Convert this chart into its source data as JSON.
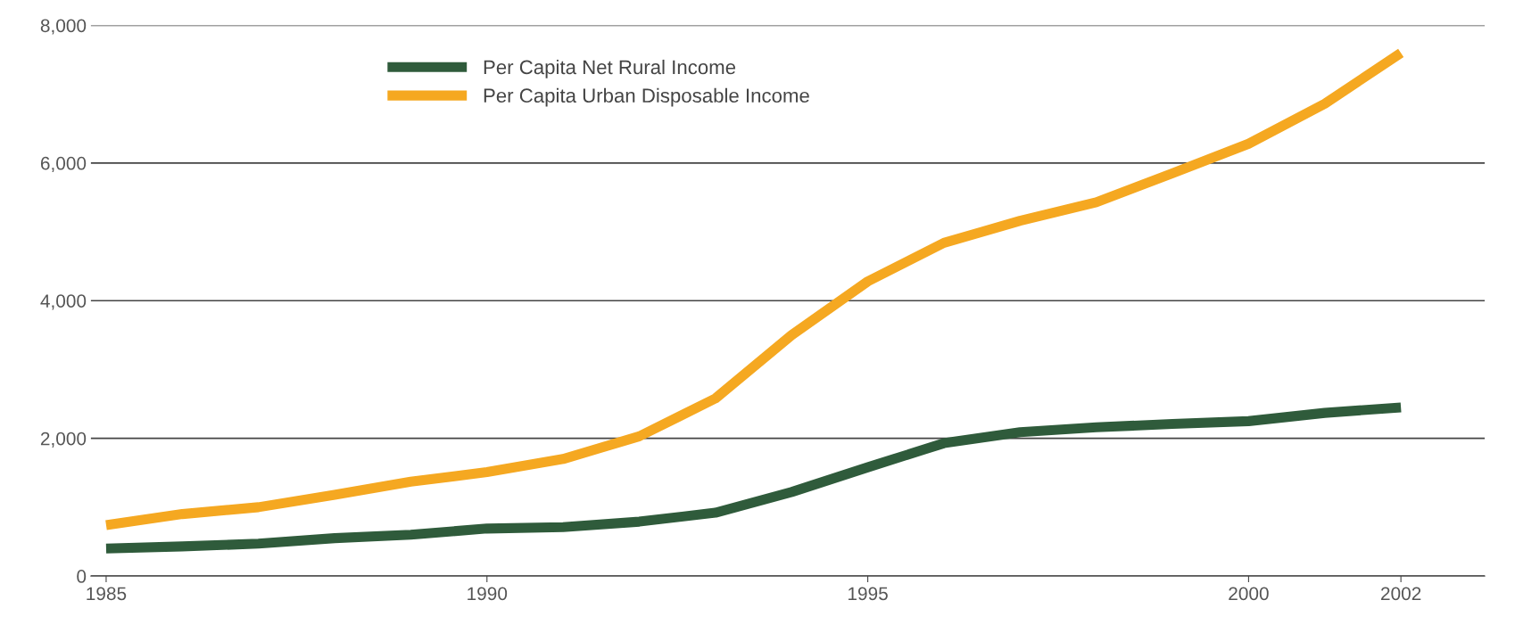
{
  "chart_data": {
    "type": "line",
    "x": [
      1985,
      1986,
      1987,
      1988,
      1989,
      1990,
      1991,
      1992,
      1993,
      1994,
      1995,
      1996,
      1997,
      1998,
      1999,
      2000,
      2001,
      2002
    ],
    "series": [
      {
        "name": "Per Capita Net Rural Income",
        "color": "#2f5b3b",
        "values": [
          400,
          430,
          470,
          550,
          600,
          690,
          710,
          790,
          920,
          1220,
          1580,
          1930,
          2090,
          2160,
          2210,
          2250,
          2370,
          2450
        ]
      },
      {
        "name": "Per Capita Urban Disposable Income",
        "color": "#f5a821",
        "values": [
          740,
          900,
          1000,
          1180,
          1370,
          1510,
          1700,
          2030,
          2580,
          3500,
          4280,
          4840,
          5160,
          5430,
          5850,
          6280,
          6860,
          7600
        ]
      }
    ],
    "xlim": [
      1984.8,
      2003.1
    ],
    "xticks": [
      1985,
      1990,
      1995,
      2000,
      2002
    ],
    "ylim": [
      0,
      8000
    ],
    "yticks": [
      {
        "value": 0,
        "label": "0"
      },
      {
        "value": 2000,
        "label": "2,000"
      },
      {
        "value": 4000,
        "label": "4,000"
      },
      {
        "value": 6000,
        "label": "6,000"
      },
      {
        "value": 8000,
        "label": "8,000"
      }
    ],
    "grid": "y",
    "legend": "top left",
    "marker": "none",
    "line_style": "solid"
  }
}
